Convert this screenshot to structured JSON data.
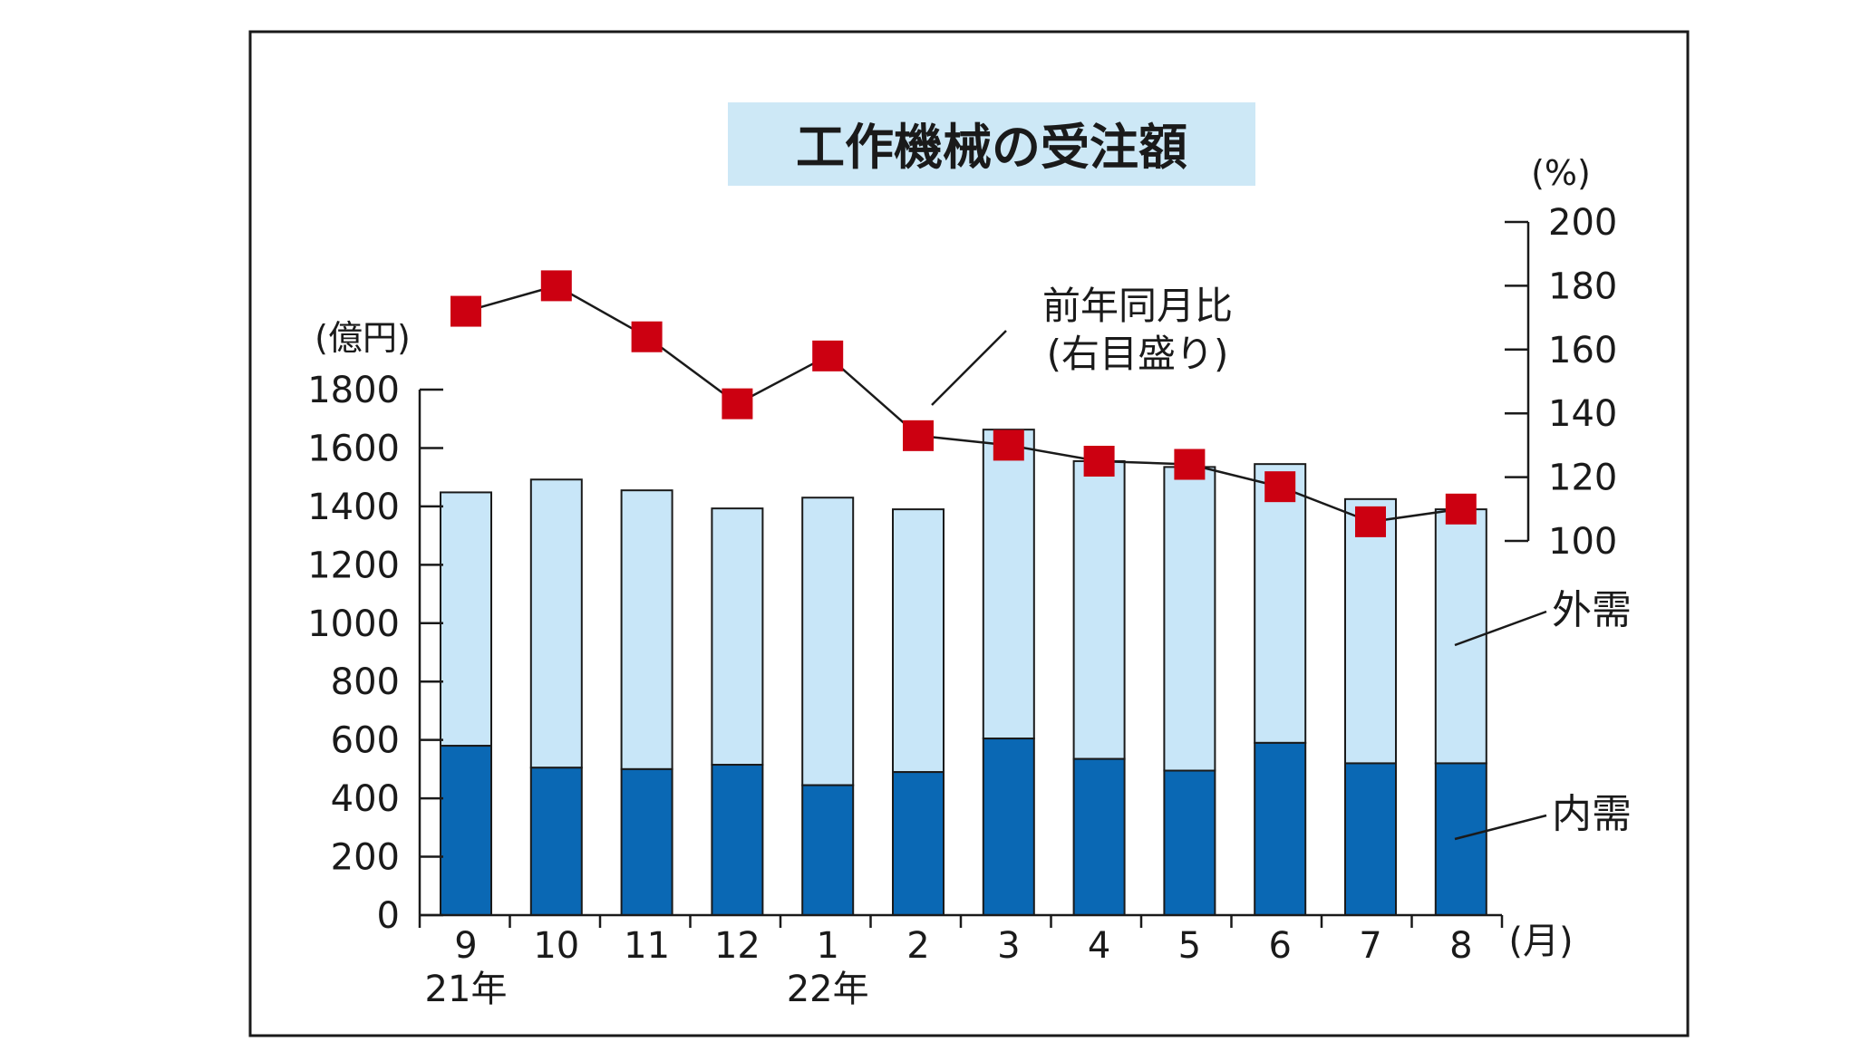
{
  "chart_data": {
    "type": "bar",
    "title": "工作機械の受注額",
    "categories": [
      "9",
      "10",
      "11",
      "12",
      "1",
      "2",
      "3",
      "4",
      "5",
      "6",
      "7",
      "8"
    ],
    "year_labels": [
      {
        "category_index": 0,
        "text": "21年"
      },
      {
        "category_index": 4,
        "text": "22年"
      }
    ],
    "x_unit": "(月)",
    "y_left_unit": "(億円)",
    "y_right_unit": "(%)",
    "ylim_left": [
      0,
      1800
    ],
    "yticks_left": [
      0,
      200,
      400,
      600,
      800,
      1000,
      1200,
      1400,
      1600,
      1800
    ],
    "ylim_right": [
      100,
      200
    ],
    "yticks_right": [
      100,
      120,
      140,
      160,
      180,
      200
    ],
    "series": [
      {
        "name": "内需",
        "type": "bar",
        "stacked": true,
        "color": "#0a68b4",
        "values": [
          580,
          505,
          500,
          515,
          445,
          490,
          605,
          535,
          495,
          590,
          520,
          520
        ]
      },
      {
        "name": "外需",
        "type": "bar",
        "stacked": true,
        "color": "#c8e6f8",
        "values": [
          868,
          987,
          955,
          878,
          985,
          900,
          1058,
          1020,
          1040,
          955,
          905,
          870
        ]
      },
      {
        "name": "前年同月比(右目盛り)",
        "type": "line",
        "axis": "right",
        "color": "#cc0011",
        "values": [
          172,
          180,
          164,
          143,
          158,
          133,
          130,
          125,
          124,
          117,
          106,
          110
        ]
      }
    ],
    "annotations": {
      "line_label_1": "前年同月比",
      "line_label_2": "(右目盛り)",
      "export_label": "外需",
      "domestic_label": "内需"
    },
    "grid": false,
    "legend": "callouts"
  }
}
